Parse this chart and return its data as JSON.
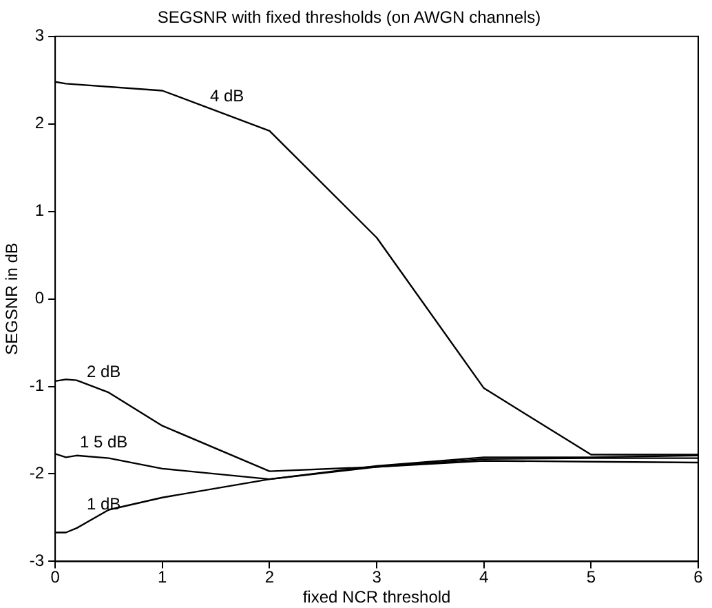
{
  "chart_data": {
    "type": "line",
    "title": "SEGSNR with fixed thresholds (on AWGN channels)",
    "xlabel": "fixed NCR threshold",
    "ylabel": "SEGSNR in dB",
    "xlim": [
      0,
      6
    ],
    "xticks": [
      0,
      1,
      2,
      3,
      4,
      5,
      6
    ],
    "ylim": [
      -3,
      3
    ],
    "yticks": [
      -3,
      -2,
      -1,
      0,
      1,
      2,
      3
    ],
    "grid": false,
    "legend": false,
    "marker": "none",
    "line_style": "solid",
    "series": [
      {
        "name": "4 dB",
        "color": "#000000",
        "x": [
          0,
          0.1,
          1,
          2,
          3,
          4,
          5,
          6
        ],
        "values": [
          2.48,
          2.46,
          2.38,
          1.92,
          0.7,
          -1.02,
          -1.78,
          -1.78
        ]
      },
      {
        "name": "2 dB",
        "color": "#000000",
        "x": [
          0,
          0.1,
          0.2,
          0.5,
          1,
          2,
          3,
          4,
          5,
          6
        ],
        "values": [
          -0.94,
          -0.92,
          -0.93,
          -1.07,
          -1.45,
          -1.97,
          -1.92,
          -1.83,
          -1.82,
          -1.82
        ]
      },
      {
        "name": "1 5 dB",
        "color": "#000000",
        "x": [
          0,
          0.1,
          0.2,
          0.5,
          1,
          2,
          3,
          4,
          5,
          6
        ],
        "values": [
          -1.77,
          -1.81,
          -1.79,
          -1.82,
          -1.94,
          -2.06,
          -1.92,
          -1.85,
          -1.86,
          -1.87
        ]
      },
      {
        "name": "1 dB",
        "color": "#000000",
        "x": [
          0,
          0.1,
          0.2,
          0.5,
          1,
          2,
          3,
          4,
          5,
          6
        ],
        "values": [
          -2.67,
          -2.67,
          -2.62,
          -2.41,
          -2.27,
          -2.06,
          -1.91,
          -1.81,
          -1.81,
          -1.79
        ]
      }
    ]
  }
}
